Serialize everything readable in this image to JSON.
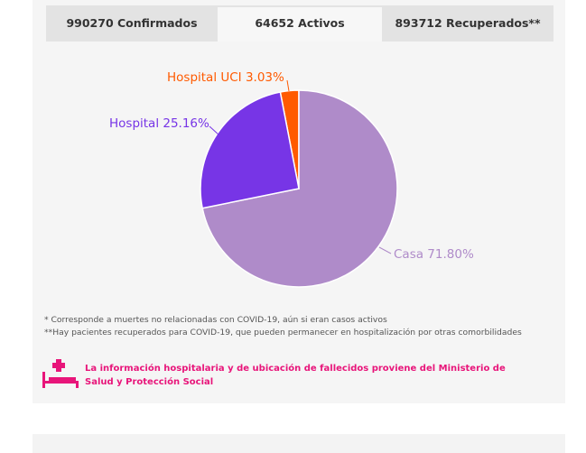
{
  "tabs": [
    {
      "label": "990270 Confirmados"
    },
    {
      "label": "64652 Activos"
    },
    {
      "label": "893712 Recuperados**"
    }
  ],
  "active_tab": 1,
  "chart_data": {
    "type": "pie",
    "slices": [
      {
        "name": "Hospital UCI",
        "value": 3.03,
        "label": "Hospital UCI 3.03%",
        "color": "#ff5a00"
      },
      {
        "name": "Casa",
        "value": 71.8,
        "label": "Casa 71.80%",
        "color": "#af8bc9"
      },
      {
        "name": "Hospital",
        "value": 25.16,
        "label": "Hospital 25.16%",
        "color": "#7735e6"
      }
    ]
  },
  "notes": [
    "* Corresponde a muertes no relacionadas con COVID-19, aún si eran casos activos",
    "**Hay pacientes recuperados para COVID-19, que pueden permanecer en hospitalización por otras comorbilidades"
  ],
  "source_note": "La información hospitalaria y de ubicación de fallecidos proviene del Ministerio de Salud y Protección Social",
  "colors": {
    "accent": "#e8157a"
  },
  "icons": {
    "hospital": "hospital-bed-icon"
  }
}
